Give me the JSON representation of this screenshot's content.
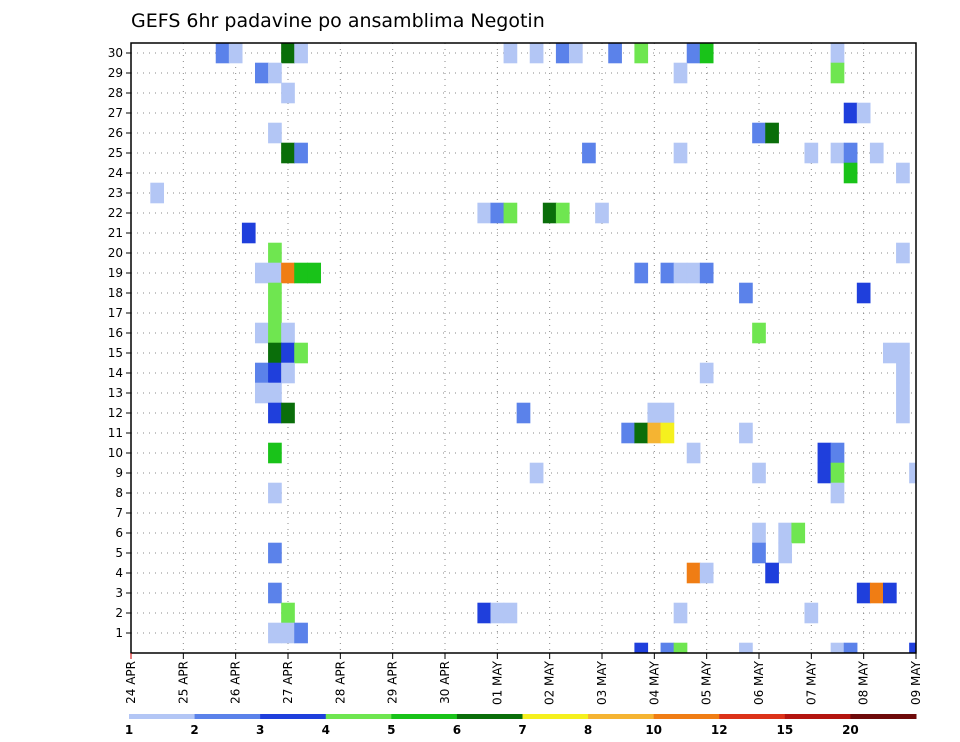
{
  "chart_data": {
    "type": "heatmap",
    "title": "GEFS 6hr padavine po ansamblima Negotin",
    "xlabel": "",
    "ylabel": "",
    "y_ticks": [
      "1",
      "2",
      "3",
      "4",
      "5",
      "6",
      "7",
      "8",
      "9",
      "10",
      "11",
      "12",
      "13",
      "14",
      "15",
      "16",
      "17",
      "18",
      "19",
      "20",
      "21",
      "22",
      "23",
      "24",
      "25",
      "26",
      "27",
      "28",
      "29",
      "30"
    ],
    "x_ticks": [
      "24 APR",
      "25 APR",
      "26 APR",
      "27 APR",
      "28 APR",
      "29 APR",
      "30 APR",
      "01 MAY",
      "02 MAY",
      "03 MAY",
      "04 MAY",
      "05 MAY",
      "06 MAY",
      "07 MAY",
      "08 MAY",
      "09 MAY"
    ],
    "x_range_days": [
      0,
      15
    ],
    "y_range": [
      0,
      30
    ],
    "grid": true,
    "legend": {
      "placement": "bottom",
      "labels": [
        "1",
        "2",
        "3",
        "4",
        "5",
        "6",
        "7",
        "8",
        "10",
        "12",
        "15",
        "20"
      ],
      "colors": [
        "#b3c6f5",
        "#5b82ea",
        "#1f3fdc",
        "#6fe650",
        "#19c319",
        "#0a6e0a",
        "#f5f01e",
        "#f5b432",
        "#f07d14",
        "#dc3219",
        "#b4140f",
        "#6e0a0a"
      ]
    },
    "cells": [
      {
        "d": 0.5,
        "m": 23,
        "c": 1
      },
      {
        "d": 2.25,
        "m": 21,
        "c": 3
      },
      {
        "d": 1.75,
        "m": 30,
        "c": 2
      },
      {
        "d": 2.0,
        "m": 30,
        "c": 1
      },
      {
        "d": 3.0,
        "m": 30,
        "c": 6
      },
      {
        "d": 3.25,
        "m": 30,
        "c": 1
      },
      {
        "d": 2.5,
        "m": 29,
        "c": 2
      },
      {
        "d": 2.75,
        "m": 29,
        "c": 1
      },
      {
        "d": 3.0,
        "m": 28,
        "c": 1
      },
      {
        "d": 2.75,
        "m": 26,
        "c": 1
      },
      {
        "d": 3.0,
        "m": 25,
        "c": 6
      },
      {
        "d": 3.25,
        "m": 25,
        "c": 2
      },
      {
        "d": 2.75,
        "m": 20,
        "c": 4
      },
      {
        "d": 2.5,
        "m": 19,
        "c": 1
      },
      {
        "d": 2.75,
        "m": 19,
        "c": 1
      },
      {
        "d": 3.0,
        "m": 19,
        "c": 9
      },
      {
        "d": 3.25,
        "m": 19,
        "c": 5
      },
      {
        "d": 3.5,
        "m": 19,
        "c": 5
      },
      {
        "d": 2.75,
        "m": 18,
        "c": 4
      },
      {
        "d": 2.75,
        "m": 17,
        "c": 4
      },
      {
        "d": 2.5,
        "m": 16,
        "c": 1
      },
      {
        "d": 2.75,
        "m": 16,
        "c": 4
      },
      {
        "d": 3.0,
        "m": 16,
        "c": 1
      },
      {
        "d": 2.75,
        "m": 15,
        "c": 6
      },
      {
        "d": 3.0,
        "m": 15,
        "c": 3
      },
      {
        "d": 3.25,
        "m": 15,
        "c": 4
      },
      {
        "d": 2.5,
        "m": 14,
        "c": 2
      },
      {
        "d": 2.75,
        "m": 14,
        "c": 3
      },
      {
        "d": 3.0,
        "m": 14,
        "c": 1
      },
      {
        "d": 2.5,
        "m": 13,
        "c": 1
      },
      {
        "d": 2.75,
        "m": 13,
        "c": 1
      },
      {
        "d": 2.75,
        "m": 12,
        "c": 3
      },
      {
        "d": 3.0,
        "m": 12,
        "c": 6
      },
      {
        "d": 2.75,
        "m": 10,
        "c": 5
      },
      {
        "d": 2.75,
        "m": 8,
        "c": 1
      },
      {
        "d": 2.75,
        "m": 5,
        "c": 2
      },
      {
        "d": 2.75,
        "m": 3,
        "c": 2
      },
      {
        "d": 3.0,
        "m": 2,
        "c": 4
      },
      {
        "d": 2.75,
        "m": 1,
        "c": 1
      },
      {
        "d": 3.0,
        "m": 1,
        "c": 1
      },
      {
        "d": 3.25,
        "m": 1,
        "c": 2
      },
      {
        "d": 7.25,
        "m": 30,
        "c": 1
      },
      {
        "d": 7.75,
        "m": 30,
        "c": 1
      },
      {
        "d": 8.25,
        "m": 30,
        "c": 2
      },
      {
        "d": 8.5,
        "m": 30,
        "c": 1
      },
      {
        "d": 9.25,
        "m": 30,
        "c": 2
      },
      {
        "d": 9.75,
        "m": 30,
        "c": 4
      },
      {
        "d": 6.75,
        "m": 22,
        "c": 1
      },
      {
        "d": 7.0,
        "m": 22,
        "c": 2
      },
      {
        "d": 7.25,
        "m": 22,
        "c": 4
      },
      {
        "d": 8.0,
        "m": 22,
        "c": 6
      },
      {
        "d": 8.25,
        "m": 22,
        "c": 4
      },
      {
        "d": 9.0,
        "m": 22,
        "c": 1
      },
      {
        "d": 8.75,
        "m": 25,
        "c": 2
      },
      {
        "d": 7.5,
        "m": 12,
        "c": 2
      },
      {
        "d": 7.75,
        "m": 9,
        "c": 1
      },
      {
        "d": 6.75,
        "m": 2,
        "c": 3
      },
      {
        "d": 7.0,
        "m": 2,
        "c": 1
      },
      {
        "d": 7.25,
        "m": 2,
        "c": 1
      },
      {
        "d": 10.75,
        "m": 30,
        "c": 2
      },
      {
        "d": 11.0,
        "m": 30,
        "c": 5
      },
      {
        "d": 10.5,
        "m": 29,
        "c": 1
      },
      {
        "d": 12.0,
        "m": 26,
        "c": 2
      },
      {
        "d": 12.25,
        "m": 26,
        "c": 6
      },
      {
        "d": 10.5,
        "m": 25,
        "c": 1
      },
      {
        "d": 9.75,
        "m": 19,
        "c": 2
      },
      {
        "d": 10.25,
        "m": 19,
        "c": 2
      },
      {
        "d": 10.5,
        "m": 19,
        "c": 1
      },
      {
        "d": 10.75,
        "m": 19,
        "c": 1
      },
      {
        "d": 11.0,
        "m": 19,
        "c": 2
      },
      {
        "d": 11.75,
        "m": 18,
        "c": 2
      },
      {
        "d": 12.0,
        "m": 16,
        "c": 4
      },
      {
        "d": 11.0,
        "m": 14,
        "c": 1
      },
      {
        "d": 10.0,
        "m": 12,
        "c": 1
      },
      {
        "d": 10.25,
        "m": 12,
        "c": 1
      },
      {
        "d": 9.5,
        "m": 11,
        "c": 2
      },
      {
        "d": 9.75,
        "m": 11,
        "c": 6
      },
      {
        "d": 10.0,
        "m": 11,
        "c": 8
      },
      {
        "d": 10.25,
        "m": 11,
        "c": 7
      },
      {
        "d": 11.75,
        "m": 11,
        "c": 1
      },
      {
        "d": 10.75,
        "m": 10,
        "c": 1
      },
      {
        "d": 12.0,
        "m": 9,
        "c": 1
      },
      {
        "d": 12.0,
        "m": 6,
        "c": 1
      },
      {
        "d": 12.5,
        "m": 6,
        "c": 1
      },
      {
        "d": 12.75,
        "m": 6,
        "c": 4
      },
      {
        "d": 12.0,
        "m": 5,
        "c": 2
      },
      {
        "d": 12.5,
        "m": 5,
        "c": 1
      },
      {
        "d": 10.75,
        "m": 4,
        "c": 9
      },
      {
        "d": 11.0,
        "m": 4,
        "c": 1
      },
      {
        "d": 12.25,
        "m": 4,
        "c": 3
      },
      {
        "d": 10.5,
        "m": 2,
        "c": 1
      },
      {
        "d": 9.75,
        "m": 0,
        "c": 3
      },
      {
        "d": 10.25,
        "m": 0,
        "c": 2
      },
      {
        "d": 10.5,
        "m": 0,
        "c": 4
      },
      {
        "d": 11.75,
        "m": 0,
        "c": 1
      },
      {
        "d": 13.5,
        "m": 30,
        "c": 1
      },
      {
        "d": 13.5,
        "m": 29,
        "c": 4
      },
      {
        "d": 13.75,
        "m": 27,
        "c": 3
      },
      {
        "d": 14.0,
        "m": 27,
        "c": 1
      },
      {
        "d": 13.0,
        "m": 25,
        "c": 1
      },
      {
        "d": 13.5,
        "m": 25,
        "c": 1
      },
      {
        "d": 13.75,
        "m": 25,
        "c": 2
      },
      {
        "d": 14.25,
        "m": 25,
        "c": 1
      },
      {
        "d": 13.75,
        "m": 24,
        "c": 5
      },
      {
        "d": 14.75,
        "m": 24,
        "c": 1
      },
      {
        "d": 14.75,
        "m": 20,
        "c": 1
      },
      {
        "d": 14.0,
        "m": 18,
        "c": 3
      },
      {
        "d": 14.5,
        "m": 15,
        "c": 1
      },
      {
        "d": 14.75,
        "m": 15,
        "c": 1
      },
      {
        "d": 14.75,
        "m": 14,
        "c": 1
      },
      {
        "d": 14.75,
        "m": 13,
        "c": 1
      },
      {
        "d": 14.75,
        "m": 12,
        "c": 1
      },
      {
        "d": 13.25,
        "m": 10,
        "c": 3
      },
      {
        "d": 13.5,
        "m": 10,
        "c": 2
      },
      {
        "d": 13.25,
        "m": 9,
        "c": 3
      },
      {
        "d": 13.5,
        "m": 9,
        "c": 4
      },
      {
        "d": 15.0,
        "m": 9,
        "c": 1
      },
      {
        "d": 13.5,
        "m": 8,
        "c": 1
      },
      {
        "d": 14.0,
        "m": 3,
        "c": 3
      },
      {
        "d": 14.25,
        "m": 3,
        "c": 9
      },
      {
        "d": 14.5,
        "m": 3,
        "c": 3
      },
      {
        "d": 13.0,
        "m": 2,
        "c": 1
      },
      {
        "d": 13.5,
        "m": 0,
        "c": 1
      },
      {
        "d": 13.75,
        "m": 0,
        "c": 2
      },
      {
        "d": 15.0,
        "m": 0,
        "c": 3
      }
    ]
  }
}
